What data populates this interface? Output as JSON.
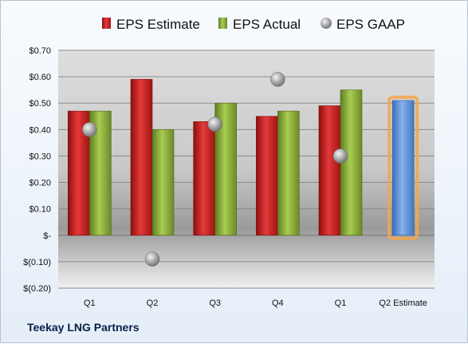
{
  "footer": {
    "company": "Teekay LNG Partners"
  },
  "colors": {
    "estimate": "#d42424",
    "actual": "#8eb33b",
    "gaap": "#a9a9a9",
    "forecast": "#5b8fd6",
    "forecast_outline": "#f5a64d"
  },
  "chart_data": {
    "type": "bar",
    "categories": [
      "Q1",
      "Q2",
      "Q3",
      "Q4",
      "Q1",
      "Q2 Estimate"
    ],
    "ylim": [
      -0.2,
      0.7
    ],
    "ytick_values": [
      0.7,
      0.6,
      0.5,
      0.4,
      0.3,
      0.2,
      0.1,
      0.0,
      -0.1,
      -0.2
    ],
    "ytick_labels": [
      "$0.70",
      "$0.60",
      "$0.50",
      "$0.40",
      "$0.30",
      "$0.20",
      "$0.10",
      "$-",
      "$(0.10)",
      "$(0.20)"
    ],
    "legend_position": "top",
    "series": [
      {
        "name": "EPS Estimate",
        "kind": "bar",
        "values": [
          0.47,
          0.59,
          0.43,
          0.45,
          0.49,
          0.51
        ]
      },
      {
        "name": "EPS Actual",
        "kind": "bar",
        "values": [
          0.47,
          0.4,
          0.5,
          0.47,
          0.55,
          null
        ]
      },
      {
        "name": "EPS GAAP",
        "kind": "marker",
        "values": [
          0.4,
          -0.09,
          0.42,
          0.59,
          0.3,
          null
        ]
      }
    ]
  }
}
